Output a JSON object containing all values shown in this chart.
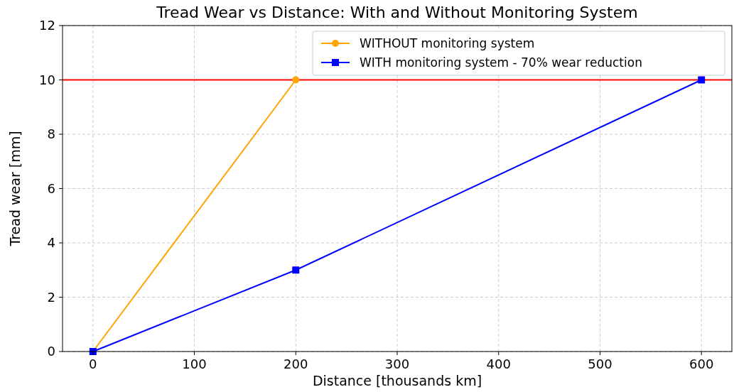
{
  "chart_data": {
    "type": "line",
    "title": "Tread Wear vs Distance: With and Without Monitoring System",
    "xlabel": "Distance [thousands km]",
    "ylabel": "Tread wear [mm]",
    "series": [
      {
        "name": "WITHOUT monitoring system",
        "color": "#ffa500",
        "x": [
          0,
          200
        ],
        "values": [
          0,
          10
        ],
        "marker": "circle"
      },
      {
        "name": "WITH monitoring system - 70% wear reduction",
        "color": "#0000ff",
        "x": [
          0,
          200,
          600
        ],
        "values": [
          0,
          3,
          10
        ],
        "marker": "square"
      }
    ],
    "xlim": [
      -30,
      630
    ],
    "xticks": [
      0,
      100,
      200,
      300,
      400,
      500,
      600
    ],
    "ylim": [
      0,
      12
    ],
    "yticks": [
      0,
      2,
      4,
      6,
      8,
      10,
      12
    ],
    "ref_lines": [
      {
        "axis": "y",
        "value": 10,
        "color": "#ff0000"
      }
    ],
    "grid": true,
    "legend": "top right",
    "line_style": "solid"
  }
}
